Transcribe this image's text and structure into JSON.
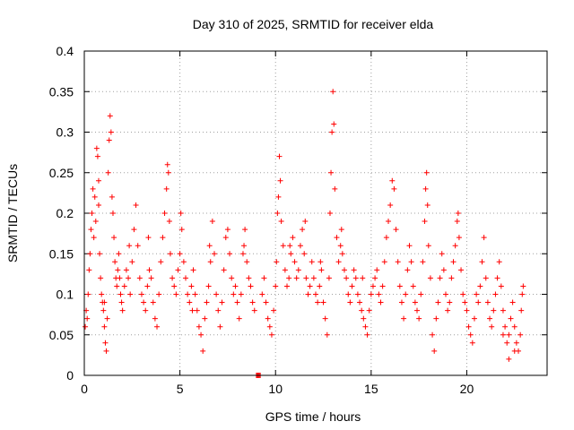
{
  "chart_data": {
    "type": "scatter",
    "title": "Day 310 of 2025, SRMTID for receiver elda",
    "xlabel": "GPS time / hours",
    "ylabel": "SRMTID / TECUs",
    "xlim": [
      0,
      24.2
    ],
    "ylim": [
      0,
      0.4
    ],
    "xticks": [
      0,
      5,
      10,
      15,
      20
    ],
    "yticks": [
      0,
      0.05,
      0.1,
      0.15,
      0.2,
      0.25,
      0.3,
      0.35,
      0.4
    ],
    "xtick_labels": [
      "0",
      "5",
      "10",
      "15",
      "20"
    ],
    "ytick_labels": [
      "0",
      "0.05",
      "0.1",
      "0.15",
      "0.2",
      "0.25",
      "0.3",
      "0.35",
      "0.4"
    ],
    "grid": true,
    "marker": "+",
    "color": "#ff0000",
    "series": [
      {
        "name": "SRMTID",
        "points": [
          [
            0.05,
            0.06
          ],
          [
            0.1,
            0.08
          ],
          [
            0.15,
            0.07
          ],
          [
            0.2,
            0.1
          ],
          [
            0.25,
            0.13
          ],
          [
            0.3,
            0.15
          ],
          [
            0.35,
            0.18
          ],
          [
            0.4,
            0.2
          ],
          [
            0.45,
            0.23
          ],
          [
            0.5,
            0.17
          ],
          [
            0.55,
            0.22
          ],
          [
            0.6,
            0.19
          ],
          [
            0.65,
            0.28
          ],
          [
            0.7,
            0.27
          ],
          [
            0.75,
            0.21
          ],
          [
            0.8,
            0.15
          ],
          [
            0.85,
            0.12
          ],
          [
            0.9,
            0.1
          ],
          [
            0.95,
            0.09
          ],
          [
            1.0,
            0.08
          ],
          [
            1.05,
            0.06
          ],
          [
            1.1,
            0.04
          ],
          [
            1.15,
            0.03
          ],
          [
            1.2,
            0.07
          ],
          [
            1.25,
            0.25
          ],
          [
            1.3,
            0.29
          ],
          [
            1.35,
            0.32
          ],
          [
            1.4,
            0.3
          ],
          [
            1.45,
            0.22
          ],
          [
            1.5,
            0.2
          ],
          [
            1.55,
            0.17
          ],
          [
            1.6,
            0.14
          ],
          [
            1.65,
            0.12
          ],
          [
            1.7,
            0.11
          ],
          [
            1.75,
            0.13
          ],
          [
            1.8,
            0.15
          ],
          [
            1.85,
            0.12
          ],
          [
            1.9,
            0.1
          ],
          [
            1.95,
            0.09
          ],
          [
            2.0,
            0.08
          ],
          [
            2.1,
            0.11
          ],
          [
            2.2,
            0.13
          ],
          [
            2.3,
            0.12
          ],
          [
            2.4,
            0.1
          ],
          [
            2.5,
            0.14
          ],
          [
            2.6,
            0.18
          ],
          [
            2.7,
            0.21
          ],
          [
            2.8,
            0.16
          ],
          [
            2.9,
            0.12
          ],
          [
            3.0,
            0.1
          ],
          [
            3.1,
            0.09
          ],
          [
            3.2,
            0.08
          ],
          [
            3.3,
            0.11
          ],
          [
            3.4,
            0.13
          ],
          [
            3.5,
            0.12
          ],
          [
            3.6,
            0.09
          ],
          [
            3.7,
            0.07
          ],
          [
            3.8,
            0.06
          ],
          [
            3.9,
            0.1
          ],
          [
            4.0,
            0.14
          ],
          [
            4.1,
            0.17
          ],
          [
            4.2,
            0.2
          ],
          [
            4.3,
            0.23
          ],
          [
            4.35,
            0.26
          ],
          [
            4.4,
            0.25
          ],
          [
            4.45,
            0.19
          ],
          [
            4.5,
            0.15
          ],
          [
            4.6,
            0.12
          ],
          [
            4.7,
            0.11
          ],
          [
            4.8,
            0.1
          ],
          [
            4.9,
            0.13
          ],
          [
            5.0,
            0.15
          ],
          [
            5.1,
            0.18
          ],
          [
            5.2,
            0.14
          ],
          [
            5.3,
            0.12
          ],
          [
            5.4,
            0.1
          ],
          [
            5.5,
            0.09
          ],
          [
            5.6,
            0.11
          ],
          [
            5.7,
            0.13
          ],
          [
            5.8,
            0.1
          ],
          [
            5.9,
            0.08
          ],
          [
            6.0,
            0.06
          ],
          [
            6.1,
            0.05
          ],
          [
            6.2,
            0.03
          ],
          [
            6.3,
            0.07
          ],
          [
            6.4,
            0.09
          ],
          [
            6.5,
            0.11
          ],
          [
            6.6,
            0.14
          ],
          [
            6.7,
            0.19
          ],
          [
            6.8,
            0.15
          ],
          [
            6.9,
            0.1
          ],
          [
            7.0,
            0.08
          ],
          [
            7.1,
            0.06
          ],
          [
            7.2,
            0.09
          ],
          [
            7.3,
            0.13
          ],
          [
            7.4,
            0.17
          ],
          [
            7.5,
            0.18
          ],
          [
            7.6,
            0.15
          ],
          [
            7.7,
            0.12
          ],
          [
            7.8,
            0.1
          ],
          [
            7.9,
            0.11
          ],
          [
            8.0,
            0.09
          ],
          [
            8.1,
            0.07
          ],
          [
            8.2,
            0.1
          ],
          [
            8.3,
            0.15
          ],
          [
            8.4,
            0.18
          ],
          [
            8.5,
            0.14
          ],
          [
            8.6,
            0.12
          ],
          [
            8.7,
            0.11
          ],
          [
            8.8,
            0.09
          ],
          [
            8.9,
            0.08
          ],
          [
            9.0,
            0.0
          ],
          [
            9.05,
            0.0
          ],
          [
            9.1,
            0.0
          ],
          [
            9.15,
            0.0
          ],
          [
            9.2,
            0.0
          ],
          [
            9.3,
            0.1
          ],
          [
            9.4,
            0.12
          ],
          [
            9.5,
            0.09
          ],
          [
            9.6,
            0.07
          ],
          [
            9.7,
            0.06
          ],
          [
            9.8,
            0.05
          ],
          [
            9.9,
            0.08
          ],
          [
            10.0,
            0.11
          ],
          [
            10.05,
            0.14
          ],
          [
            10.1,
            0.2
          ],
          [
            10.15,
            0.22
          ],
          [
            10.2,
            0.27
          ],
          [
            10.25,
            0.24
          ],
          [
            10.3,
            0.19
          ],
          [
            10.4,
            0.16
          ],
          [
            10.5,
            0.13
          ],
          [
            10.6,
            0.11
          ],
          [
            10.7,
            0.12
          ],
          [
            10.8,
            0.15
          ],
          [
            10.9,
            0.17
          ],
          [
            11.0,
            0.14
          ],
          [
            11.1,
            0.12
          ],
          [
            11.2,
            0.13
          ],
          [
            11.3,
            0.16
          ],
          [
            11.4,
            0.18
          ],
          [
            11.5,
            0.15
          ],
          [
            11.6,
            0.12
          ],
          [
            11.7,
            0.1
          ],
          [
            11.8,
            0.11
          ],
          [
            11.9,
            0.14
          ],
          [
            12.0,
            0.12
          ],
          [
            12.1,
            0.1
          ],
          [
            12.2,
            0.09
          ],
          [
            12.3,
            0.11
          ],
          [
            12.4,
            0.13
          ],
          [
            12.5,
            0.09
          ],
          [
            12.6,
            0.07
          ],
          [
            12.7,
            0.05
          ],
          [
            12.8,
            0.12
          ],
          [
            12.85,
            0.2
          ],
          [
            12.9,
            0.25
          ],
          [
            12.95,
            0.3
          ],
          [
            13.0,
            0.35
          ],
          [
            13.05,
            0.31
          ],
          [
            13.1,
            0.23
          ],
          [
            13.2,
            0.17
          ],
          [
            13.3,
            0.14
          ],
          [
            13.4,
            0.16
          ],
          [
            13.5,
            0.15
          ],
          [
            13.6,
            0.13
          ],
          [
            13.7,
            0.12
          ],
          [
            13.8,
            0.1
          ],
          [
            13.9,
            0.09
          ],
          [
            14.0,
            0.11
          ],
          [
            14.1,
            0.13
          ],
          [
            14.2,
            0.12
          ],
          [
            14.3,
            0.1
          ],
          [
            14.4,
            0.09
          ],
          [
            14.5,
            0.08
          ],
          [
            14.6,
            0.07
          ],
          [
            14.7,
            0.06
          ],
          [
            14.8,
            0.05
          ],
          [
            14.9,
            0.08
          ],
          [
            15.0,
            0.1
          ],
          [
            15.1,
            0.11
          ],
          [
            15.2,
            0.12
          ],
          [
            15.3,
            0.13
          ],
          [
            15.4,
            0.1
          ],
          [
            15.5,
            0.09
          ],
          [
            15.6,
            0.11
          ],
          [
            15.7,
            0.14
          ],
          [
            15.8,
            0.17
          ],
          [
            15.9,
            0.19
          ],
          [
            16.0,
            0.21
          ],
          [
            16.1,
            0.24
          ],
          [
            16.2,
            0.23
          ],
          [
            16.3,
            0.18
          ],
          [
            16.4,
            0.14
          ],
          [
            16.5,
            0.11
          ],
          [
            16.6,
            0.09
          ],
          [
            16.7,
            0.07
          ],
          [
            16.8,
            0.1
          ],
          [
            16.9,
            0.13
          ],
          [
            17.0,
            0.16
          ],
          [
            17.1,
            0.14
          ],
          [
            17.2,
            0.11
          ],
          [
            17.3,
            0.09
          ],
          [
            17.4,
            0.08
          ],
          [
            17.5,
            0.07
          ],
          [
            17.6,
            0.1
          ],
          [
            17.7,
            0.14
          ],
          [
            17.8,
            0.19
          ],
          [
            17.85,
            0.23
          ],
          [
            17.9,
            0.25
          ],
          [
            17.95,
            0.21
          ],
          [
            18.0,
            0.16
          ],
          [
            18.1,
            0.12
          ],
          [
            18.2,
            0.05
          ],
          [
            18.3,
            0.03
          ],
          [
            18.4,
            0.07
          ],
          [
            18.5,
            0.09
          ],
          [
            18.6,
            0.12
          ],
          [
            18.7,
            0.15
          ],
          [
            18.8,
            0.13
          ],
          [
            18.9,
            0.1
          ],
          [
            19.0,
            0.08
          ],
          [
            19.1,
            0.09
          ],
          [
            19.2,
            0.12
          ],
          [
            19.3,
            0.14
          ],
          [
            19.4,
            0.16
          ],
          [
            19.5,
            0.19
          ],
          [
            19.55,
            0.2
          ],
          [
            19.6,
            0.17
          ],
          [
            19.7,
            0.13
          ],
          [
            19.8,
            0.1
          ],
          [
            19.9,
            0.09
          ],
          [
            20.0,
            0.08
          ],
          [
            20.1,
            0.06
          ],
          [
            20.2,
            0.05
          ],
          [
            20.3,
            0.04
          ],
          [
            20.4,
            0.07
          ],
          [
            20.5,
            0.1
          ],
          [
            20.6,
            0.09
          ],
          [
            20.7,
            0.11
          ],
          [
            20.8,
            0.14
          ],
          [
            20.9,
            0.17
          ],
          [
            21.0,
            0.12
          ],
          [
            21.1,
            0.09
          ],
          [
            21.2,
            0.07
          ],
          [
            21.3,
            0.06
          ],
          [
            21.4,
            0.08
          ],
          [
            21.5,
            0.1
          ],
          [
            21.6,
            0.12
          ],
          [
            21.7,
            0.14
          ],
          [
            21.8,
            0.11
          ],
          [
            21.9,
            0.08
          ],
          [
            22.0,
            0.06
          ],
          [
            22.1,
            0.04
          ],
          [
            22.2,
            0.05
          ],
          [
            22.3,
            0.07
          ],
          [
            22.4,
            0.09
          ],
          [
            22.5,
            0.06
          ],
          [
            22.6,
            0.04
          ],
          [
            22.7,
            0.03
          ],
          [
            22.8,
            0.05
          ],
          [
            22.85,
            0.08
          ],
          [
            22.9,
            0.1
          ],
          [
            22.95,
            0.11
          ],
          [
            22.5,
            0.03
          ],
          [
            22.2,
            0.02
          ],
          [
            21.9,
            0.05
          ],
          [
            0.75,
            0.24
          ],
          [
            1.05,
            0.09
          ],
          [
            2.35,
            0.16
          ],
          [
            3.35,
            0.17
          ],
          [
            5.05,
            0.2
          ],
          [
            5.65,
            0.08
          ],
          [
            6.55,
            0.16
          ],
          [
            8.35,
            0.16
          ],
          [
            10.75,
            0.16
          ],
          [
            11.55,
            0.19
          ],
          [
            12.35,
            0.14
          ],
          [
            13.45,
            0.18
          ],
          [
            14.55,
            0.12
          ]
        ]
      }
    ]
  }
}
